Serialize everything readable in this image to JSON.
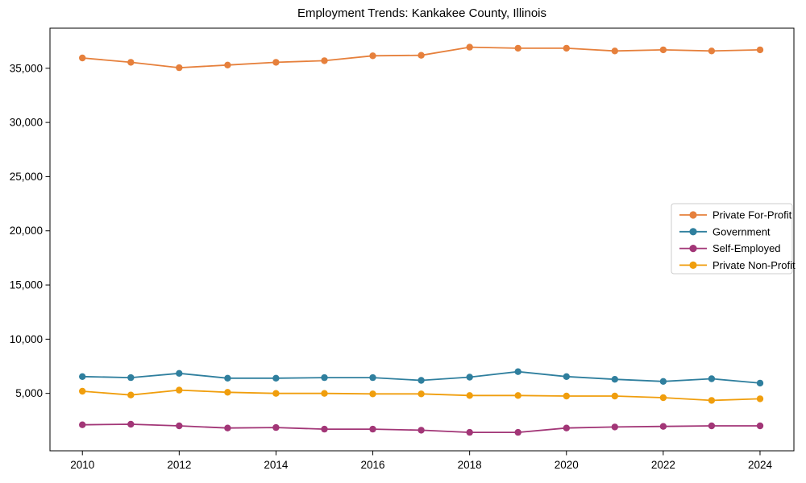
{
  "chart_data": {
    "type": "line",
    "title": "Employment Trends: Kankakee County, Illinois",
    "xlabel": "",
    "ylabel": "",
    "x": [
      2010,
      2011,
      2012,
      2013,
      2014,
      2015,
      2016,
      2017,
      2018,
      2019,
      2020,
      2021,
      2022,
      2023,
      2024
    ],
    "series": [
      {
        "name": "Private For-Profit",
        "color": "#e6803c",
        "values": [
          35950,
          35550,
          35050,
          35300,
          35550,
          35700,
          36150,
          36200,
          36950,
          36850,
          36850,
          36600,
          36700,
          36600,
          36700
        ]
      },
      {
        "name": "Government",
        "color": "#2f7f9e",
        "values": [
          6550,
          6450,
          6850,
          6400,
          6400,
          6450,
          6450,
          6200,
          6500,
          7000,
          6550,
          6300,
          6100,
          6350,
          5950
        ]
      },
      {
        "name": "Self-Employed",
        "color": "#a23677",
        "values": [
          2100,
          2150,
          2000,
          1800,
          1850,
          1700,
          1700,
          1600,
          1400,
          1400,
          1800,
          1900,
          1950,
          2000,
          2000
        ]
      },
      {
        "name": "Private Non-Profit",
        "color": "#f09e0d",
        "values": [
          5200,
          4850,
          5300,
          5100,
          5000,
          5000,
          4950,
          4950,
          4800,
          4800,
          4750,
          4750,
          4600,
          4350,
          4500
        ]
      }
    ],
    "x_ticks": [
      2010,
      2012,
      2014,
      2016,
      2018,
      2020,
      2022,
      2024
    ],
    "x_tick_labels": [
      "2010",
      "2012",
      "2014",
      "2016",
      "2018",
      "2020",
      "2022",
      "2024"
    ],
    "y_ticks": [
      5000,
      10000,
      15000,
      20000,
      25000,
      30000,
      35000
    ],
    "y_tick_labels": [
      "5,000",
      "10,000",
      "15,000",
      "20,000",
      "25,000",
      "30,000",
      "35,000"
    ],
    "xlim": [
      2009.33,
      2024.7
    ],
    "ylim": [
      -300,
      38700
    ],
    "grid": false,
    "legend_position": "center right",
    "colors": {
      "background": "#ffffff",
      "spine": "#000000",
      "text": "#000000",
      "legend_border": "#cccccc",
      "legend_background": "#ffffff"
    }
  }
}
